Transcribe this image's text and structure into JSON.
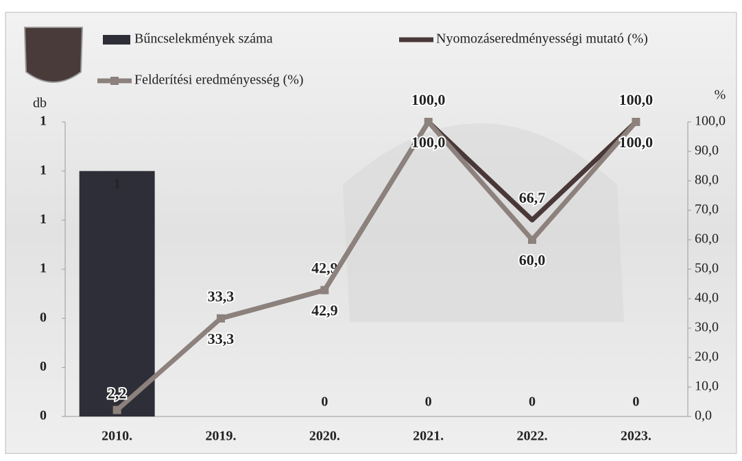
{
  "chart_data": {
    "type": "combo",
    "y_label": "db",
    "y2_label": "%",
    "categories": [
      "2010.",
      "2019.",
      "2020.",
      "2021.",
      "2022.",
      "2023."
    ],
    "series": [
      {
        "name": "Bűncselekmények száma",
        "type": "bar",
        "color": "#2e2e38",
        "values": [
          1,
          0,
          0,
          0,
          0,
          0
        ],
        "value_labels": [
          "1",
          null,
          "0",
          "0",
          "0",
          "0"
        ]
      },
      {
        "name": "Nyomozáseredményességi mutató (%)",
        "type": "line",
        "axis": "y2",
        "color": "#4a3838",
        "values": [
          null,
          33.3,
          42.9,
          100,
          66.7,
          100
        ],
        "value_labels": [
          null,
          "33,3",
          "42,9",
          "100,0",
          "66,7",
          "100,0"
        ]
      },
      {
        "name": "Felderítési eredményesség (%)",
        "type": "line",
        "axis": "y2",
        "color": "#8c817c",
        "values": [
          2.2,
          33.3,
          42.9,
          100,
          60,
          100
        ],
        "value_labels": [
          "2,2",
          "33,3",
          "42,9",
          "100,0",
          "60,0",
          "100,0"
        ]
      }
    ],
    "ylim": [
      0,
      1.2
    ],
    "yticks": [
      {
        "value": 0,
        "label": "0"
      },
      {
        "value": 0.2,
        "label": "0"
      },
      {
        "value": 0.4,
        "label": "0"
      },
      {
        "value": 0.6,
        "label": "1"
      },
      {
        "value": 0.8,
        "label": "1"
      },
      {
        "value": 1.0,
        "label": "1"
      },
      {
        "value": 1.2,
        "label": "1"
      }
    ],
    "y2lim": [
      0,
      100
    ],
    "y2ticks": [
      {
        "value": 0,
        "label": "0,0"
      },
      {
        "value": 10,
        "label": "10,0"
      },
      {
        "value": 20,
        "label": "20,0"
      },
      {
        "value": 30,
        "label": "30,0"
      },
      {
        "value": 40,
        "label": "40,0"
      },
      {
        "value": 50,
        "label": "50,0"
      },
      {
        "value": 60,
        "label": "60,0"
      },
      {
        "value": 70,
        "label": "70,0"
      },
      {
        "value": 80,
        "label": "80,0"
      },
      {
        "value": 90,
        "label": "90,0"
      },
      {
        "value": 100,
        "label": "100,0"
      }
    ]
  }
}
